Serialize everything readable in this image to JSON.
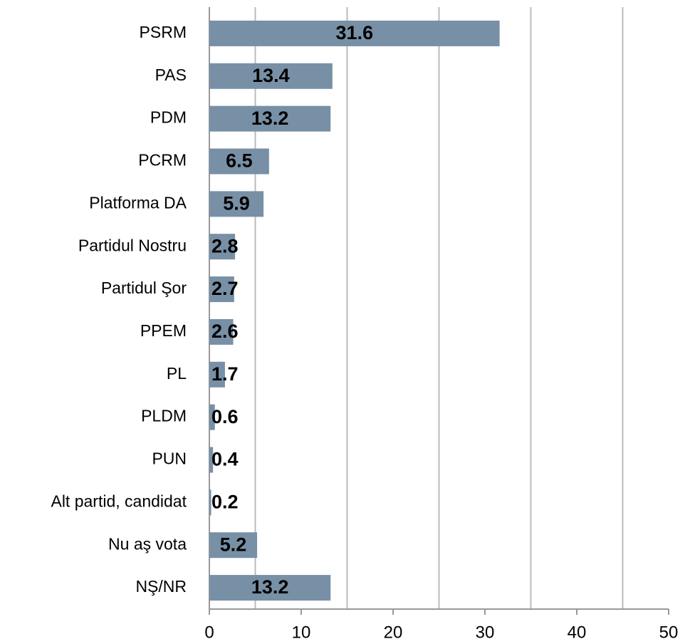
{
  "chart_data": {
    "type": "bar",
    "orientation": "horizontal",
    "categories": [
      "PSRM",
      "PAS",
      "PDM",
      "PCRM",
      "Platforma DA",
      "Partidul Nostru",
      "Partidul Şor",
      "PPEM",
      "PL",
      "PLDM",
      "PUN",
      "Alt partid, candidat",
      "Nu aş vota",
      "NŞ/NR"
    ],
    "values": [
      31.6,
      13.4,
      13.2,
      6.5,
      5.9,
      2.8,
      2.7,
      2.6,
      1.7,
      0.6,
      0.4,
      0.2,
      5.2,
      13.2
    ],
    "color": "#7890a6",
    "xlim": [
      0,
      50
    ],
    "xticks": [
      0,
      10,
      20,
      30,
      40,
      50
    ],
    "grid_lines": [
      5,
      15,
      25,
      35,
      45
    ]
  }
}
